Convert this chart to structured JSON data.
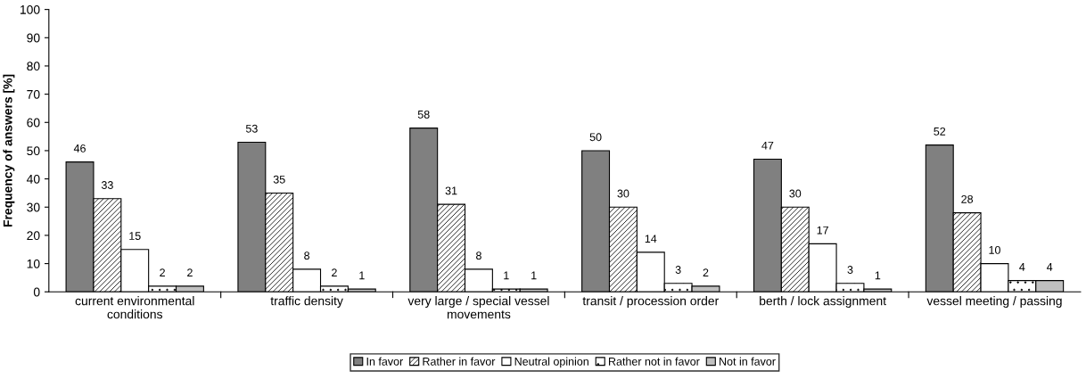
{
  "chart_data": {
    "type": "bar",
    "ylabel": "Frequency of answers [%]",
    "categories": [
      "current environmental\nconditions",
      "traffic density",
      "very large / special vessel\nmovements",
      "transit / procession order",
      "berth / lock assignment",
      "vessel meeting / passing"
    ],
    "series": [
      {
        "name": "In favor",
        "color": "#808080",
        "values": [
          46,
          53,
          58,
          50,
          47,
          52
        ]
      },
      {
        "name": "Rather in favor",
        "color": "#000000",
        "values": [
          33,
          35,
          31,
          30,
          30,
          28
        ]
      },
      {
        "name": "Neutral opinion",
        "color": "#ffffff",
        "values": [
          15,
          8,
          8,
          14,
          17,
          10
        ]
      },
      {
        "name": "Rather not in favor",
        "color": "#000000",
        "values": [
          2,
          2,
          1,
          3,
          3,
          4
        ]
      },
      {
        "name": "Not in favor",
        "color": "#c0c0c0",
        "values": [
          2,
          1,
          1,
          2,
          1,
          4
        ]
      }
    ],
    "ylim": [
      0,
      100
    ],
    "yticks": [
      0,
      10,
      20,
      30,
      40,
      50,
      60,
      70,
      80,
      90,
      100
    ],
    "data_labels": true,
    "grid": false,
    "legend": "bottom"
  }
}
